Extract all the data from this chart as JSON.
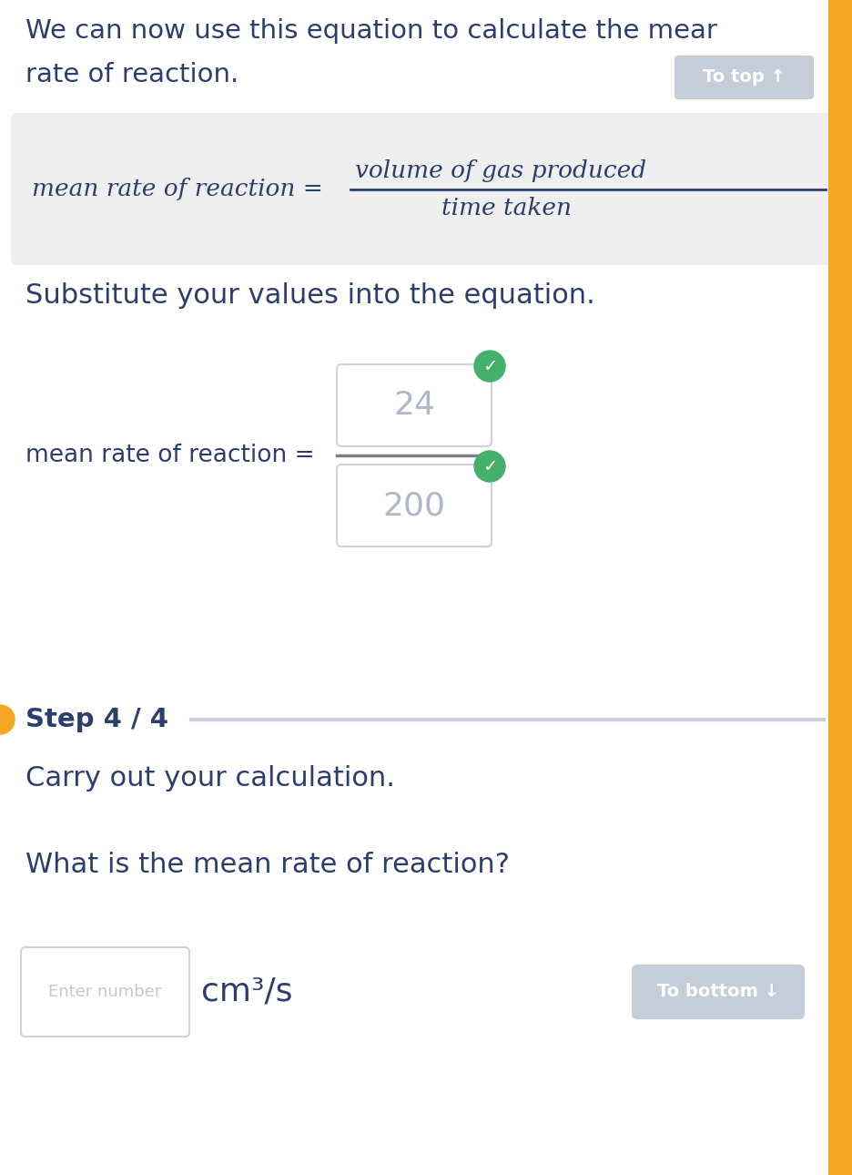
{
  "bg_color": "#ffffff",
  "orange_strip_color": "#f5a623",
  "text_color_dark": "#2c3e6b",
  "text_color_gray": "#b0b8c8",
  "formula_bg": "#efefef",
  "button_bg": "#c5cdd8",
  "button_text": "#ffffff",
  "input_border": "#d0d4da",
  "input_bg": "#ffffff",
  "green_check": "#43b06b",
  "frac_line_color": "#808080",
  "step_line_color": "#c8d0dc",
  "left_bar_color": "#f5a623",
  "intro_line1": "We can now use this equation to calculate the mear",
  "intro_line2": "rate of reaction.",
  "to_top_label": "To top ↑",
  "formula_lhs": "mean rate of reaction =",
  "formula_numerator": "volume of gas produced",
  "formula_denominator": "time taken",
  "substitute_text": "Substitute your values into the equation.",
  "eq_lhs": "mean rate of reaction =",
  "box1_value": "24",
  "box2_value": "200",
  "step_label": "Step 4 / 4",
  "carry_text": "Carry out your calculation.",
  "question_text": "What is the mean rate of reaction?",
  "input_placeholder": "Enter number",
  "units_text": "cm³/s",
  "to_bottom_label": "To bottom ↓"
}
